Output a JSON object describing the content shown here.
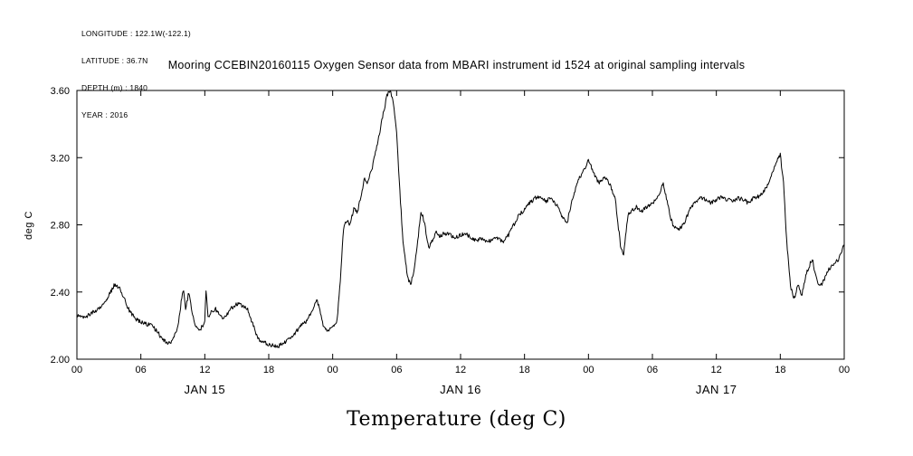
{
  "header_block": {
    "lines": [
      "LONGITUDE : 122.1W(-122.1)",
      "LATITUDE : 36.7N",
      "DEPTH (m) : 1840",
      "YEAR : 2016"
    ]
  },
  "title": "Mooring CCEBIN20160115 Oxygen Sensor data from MBARI instrument id 1524 at original sampling intervals",
  "footer": {
    "caption": "Temperature (deg C)"
  },
  "chart_data": {
    "type": "line",
    "title": "Mooring CCEBIN20160115 Oxygen Sensor data from MBARI instrument id 1524 at original sampling intervals",
    "xlabel": "Temperature (deg C)",
    "ylabel": "deg C",
    "ylim": [
      2.0,
      3.6
    ],
    "yticks": [
      2.0,
      2.4,
      2.8,
      3.2,
      3.6
    ],
    "xlim_hours": [
      0,
      72
    ],
    "xtick_interval_hours": 6,
    "xtick_labels": [
      "00",
      "06",
      "12",
      "18",
      "00",
      "06",
      "12",
      "18",
      "00",
      "06",
      "12",
      "18",
      "00"
    ],
    "date_labels": [
      "JAN 15",
      "JAN 16",
      "JAN 17"
    ],
    "grid": false,
    "legend": "none",
    "line_color": "#000000",
    "background_color": "#ffffff",
    "noise_amplitude": 0.012,
    "series": [
      {
        "name": "temperature",
        "units": "deg C",
        "points": [
          [
            0.0,
            2.26
          ],
          [
            0.5,
            2.25
          ],
          [
            1.0,
            2.26
          ],
          [
            1.5,
            2.28
          ],
          [
            2.0,
            2.3
          ],
          [
            2.5,
            2.33
          ],
          [
            3.0,
            2.38
          ],
          [
            3.5,
            2.44
          ],
          [
            4.0,
            2.43
          ],
          [
            4.3,
            2.38
          ],
          [
            4.7,
            2.32
          ],
          [
            5.0,
            2.28
          ],
          [
            5.5,
            2.24
          ],
          [
            6.0,
            2.22
          ],
          [
            6.5,
            2.21
          ],
          [
            7.0,
            2.2
          ],
          [
            7.5,
            2.17
          ],
          [
            8.0,
            2.12
          ],
          [
            8.5,
            2.1
          ],
          [
            9.0,
            2.11
          ],
          [
            9.5,
            2.2
          ],
          [
            9.8,
            2.35
          ],
          [
            10.0,
            2.42
          ],
          [
            10.2,
            2.3
          ],
          [
            10.5,
            2.4
          ],
          [
            10.8,
            2.28
          ],
          [
            11.0,
            2.22
          ],
          [
            11.5,
            2.17
          ],
          [
            12.0,
            2.22
          ],
          [
            12.1,
            2.42
          ],
          [
            12.3,
            2.25
          ],
          [
            12.6,
            2.28
          ],
          [
            13.0,
            2.3
          ],
          [
            13.4,
            2.26
          ],
          [
            13.8,
            2.24
          ],
          [
            14.2,
            2.28
          ],
          [
            14.6,
            2.31
          ],
          [
            15.0,
            2.33
          ],
          [
            15.5,
            2.32
          ],
          [
            16.0,
            2.3
          ],
          [
            16.5,
            2.21
          ],
          [
            17.0,
            2.12
          ],
          [
            17.5,
            2.1
          ],
          [
            18.0,
            2.09
          ],
          [
            18.5,
            2.08
          ],
          [
            19.0,
            2.08
          ],
          [
            19.5,
            2.1
          ],
          [
            20.0,
            2.12
          ],
          [
            20.5,
            2.16
          ],
          [
            21.0,
            2.2
          ],
          [
            21.5,
            2.22
          ],
          [
            22.0,
            2.28
          ],
          [
            22.5,
            2.35
          ],
          [
            22.8,
            2.3
          ],
          [
            23.1,
            2.2
          ],
          [
            23.5,
            2.16
          ],
          [
            24.0,
            2.2
          ],
          [
            24.4,
            2.22
          ],
          [
            24.7,
            2.45
          ],
          [
            25.0,
            2.78
          ],
          [
            25.3,
            2.83
          ],
          [
            25.6,
            2.8
          ],
          [
            26.0,
            2.9
          ],
          [
            26.3,
            2.87
          ],
          [
            26.7,
            2.98
          ],
          [
            27.0,
            3.08
          ],
          [
            27.3,
            3.05
          ],
          [
            27.7,
            3.14
          ],
          [
            28.0,
            3.22
          ],
          [
            28.4,
            3.35
          ],
          [
            28.8,
            3.48
          ],
          [
            29.1,
            3.57
          ],
          [
            29.4,
            3.6
          ],
          [
            29.7,
            3.52
          ],
          [
            30.0,
            3.35
          ],
          [
            30.3,
            3.0
          ],
          [
            30.6,
            2.7
          ],
          [
            31.0,
            2.5
          ],
          [
            31.3,
            2.44
          ],
          [
            31.7,
            2.55
          ],
          [
            32.0,
            2.72
          ],
          [
            32.3,
            2.88
          ],
          [
            32.6,
            2.82
          ],
          [
            33.0,
            2.66
          ],
          [
            33.3,
            2.7
          ],
          [
            33.7,
            2.76
          ],
          [
            34.0,
            2.73
          ],
          [
            34.5,
            2.75
          ],
          [
            35.0,
            2.74
          ],
          [
            35.5,
            2.72
          ],
          [
            36.0,
            2.74
          ],
          [
            36.5,
            2.75
          ],
          [
            37.0,
            2.72
          ],
          [
            37.5,
            2.71
          ],
          [
            38.0,
            2.72
          ],
          [
            38.5,
            2.7
          ],
          [
            39.0,
            2.71
          ],
          [
            39.5,
            2.72
          ],
          [
            40.0,
            2.7
          ],
          [
            40.5,
            2.74
          ],
          [
            41.0,
            2.8
          ],
          [
            41.5,
            2.86
          ],
          [
            42.0,
            2.89
          ],
          [
            42.5,
            2.93
          ],
          [
            43.0,
            2.96
          ],
          [
            43.5,
            2.97
          ],
          [
            44.0,
            2.94
          ],
          [
            44.5,
            2.96
          ],
          [
            45.0,
            2.92
          ],
          [
            45.5,
            2.85
          ],
          [
            46.0,
            2.81
          ],
          [
            46.5,
            2.96
          ],
          [
            47.0,
            3.06
          ],
          [
            47.5,
            3.12
          ],
          [
            48.0,
            3.18
          ],
          [
            48.3,
            3.14
          ],
          [
            48.7,
            3.08
          ],
          [
            49.0,
            3.05
          ],
          [
            49.5,
            3.09
          ],
          [
            50.0,
            3.04
          ],
          [
            50.5,
            2.96
          ],
          [
            51.0,
            2.68
          ],
          [
            51.3,
            2.62
          ],
          [
            51.7,
            2.86
          ],
          [
            52.0,
            2.88
          ],
          [
            52.5,
            2.91
          ],
          [
            53.0,
            2.88
          ],
          [
            53.5,
            2.91
          ],
          [
            54.0,
            2.93
          ],
          [
            54.5,
            2.96
          ],
          [
            55.0,
            3.05
          ],
          [
            55.3,
            2.97
          ],
          [
            55.7,
            2.84
          ],
          [
            56.0,
            2.79
          ],
          [
            56.5,
            2.77
          ],
          [
            57.0,
            2.81
          ],
          [
            57.5,
            2.89
          ],
          [
            58.0,
            2.93
          ],
          [
            58.5,
            2.96
          ],
          [
            59.0,
            2.95
          ],
          [
            59.5,
            2.93
          ],
          [
            60.0,
            2.95
          ],
          [
            60.5,
            2.97
          ],
          [
            61.0,
            2.95
          ],
          [
            61.5,
            2.94
          ],
          [
            62.0,
            2.96
          ],
          [
            62.5,
            2.95
          ],
          [
            63.0,
            2.93
          ],
          [
            63.5,
            2.96
          ],
          [
            64.0,
            2.97
          ],
          [
            64.5,
            3.0
          ],
          [
            65.0,
            3.06
          ],
          [
            65.5,
            3.16
          ],
          [
            66.0,
            3.22
          ],
          [
            66.3,
            3.05
          ],
          [
            66.6,
            2.7
          ],
          [
            67.0,
            2.42
          ],
          [
            67.3,
            2.36
          ],
          [
            67.7,
            2.45
          ],
          [
            68.0,
            2.38
          ],
          [
            68.5,
            2.52
          ],
          [
            69.0,
            2.6
          ],
          [
            69.3,
            2.5
          ],
          [
            69.7,
            2.43
          ],
          [
            70.0,
            2.46
          ],
          [
            70.5,
            2.53
          ],
          [
            71.0,
            2.56
          ],
          [
            71.5,
            2.6
          ],
          [
            72.0,
            2.68
          ]
        ]
      }
    ]
  }
}
